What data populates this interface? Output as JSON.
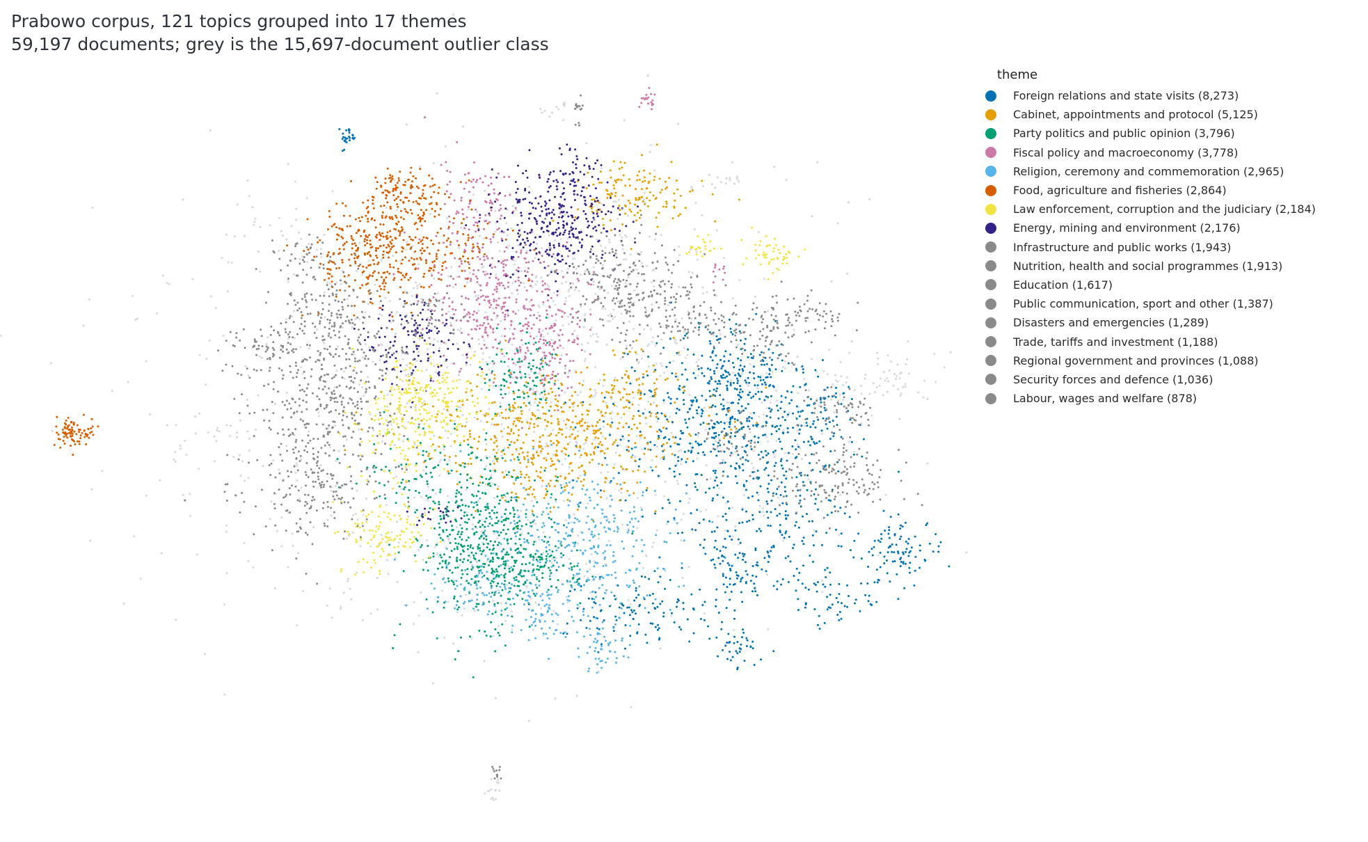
{
  "chart_data": {
    "type": "scatter",
    "title": "Prabowo corpus, 121 topics grouped into 17 themes",
    "subtitle": "59,197 documents; grey is the 15,697-document outlier class",
    "legend_title": "theme",
    "legend_placement": "right",
    "axes_visible": false,
    "grid": false,
    "outlier_class": {
      "documents": 15697,
      "color": "#d4d8de"
    },
    "series": [
      {
        "label": "Foreign relations and state visits (8,273)",
        "documents": 8273,
        "color": "#0072b2"
      },
      {
        "label": "Cabinet, appointments and protocol (5,125)",
        "documents": 5125,
        "color": "#e69f00"
      },
      {
        "label": "Party politics and public opinion (3,796)",
        "documents": 3796,
        "color": "#009e73"
      },
      {
        "label": "Fiscal policy and macroeconomy (3,778)",
        "documents": 3778,
        "color": "#cc79a7"
      },
      {
        "label": "Religion, ceremony and commemoration (2,965)",
        "documents": 2965,
        "color": "#56b4e9"
      },
      {
        "label": "Food, agriculture and fisheries (2,864)",
        "documents": 2864,
        "color": "#d55e00"
      },
      {
        "label": "Law enforcement, corruption and the judiciary (2,184)",
        "documents": 2184,
        "color": "#f0e442"
      },
      {
        "label": "Energy, mining and environment (2,176)",
        "documents": 2176,
        "color": "#332288"
      },
      {
        "label": "Infrastructure and public works (1,943)",
        "documents": 1943,
        "color": "#8a8a8a"
      },
      {
        "label": "Nutrition, health and social programmes (1,913)",
        "documents": 1913,
        "color": "#8a8a8a"
      },
      {
        "label": "Education (1,617)",
        "documents": 1617,
        "color": "#8a8a8a"
      },
      {
        "label": "Public communication, sport and other (1,387)",
        "documents": 1387,
        "color": "#8a8a8a"
      },
      {
        "label": "Disasters and emergencies (1,289)",
        "documents": 1289,
        "color": "#8a8a8a"
      },
      {
        "label": "Trade, tariffs and investment (1,188)",
        "documents": 1188,
        "color": "#8a8a8a"
      },
      {
        "label": "Regional government and provinces (1,088)",
        "documents": 1088,
        "color": "#8a8a8a"
      },
      {
        "label": "Security forces and defence (1,036)",
        "documents": 1036,
        "color": "#8a8a8a"
      },
      {
        "label": "Labour, wages and welfare (878)",
        "documents": 878,
        "color": "#8a8a8a"
      }
    ]
  }
}
